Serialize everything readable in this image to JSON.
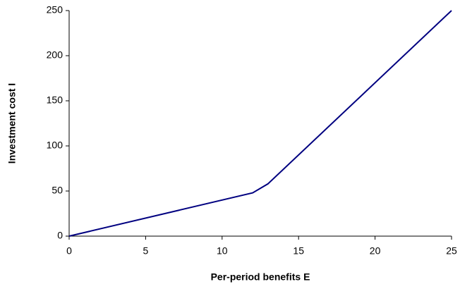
{
  "chart_data": {
    "type": "line",
    "xlabel": "Per-period benefits E",
    "ylabel": "Investment cost I",
    "series": [
      {
        "color": "#000080",
        "x": [
          0,
          12,
          13,
          25
        ],
        "values": [
          0,
          48,
          58,
          250
        ]
      }
    ],
    "xlim": [
      0,
      25
    ],
    "xticks": [
      0,
      5,
      10,
      15,
      20,
      25
    ],
    "ylim": [
      0,
      250
    ],
    "yticks": [
      0,
      50,
      100,
      150,
      200,
      250
    ],
    "grid": false
  }
}
